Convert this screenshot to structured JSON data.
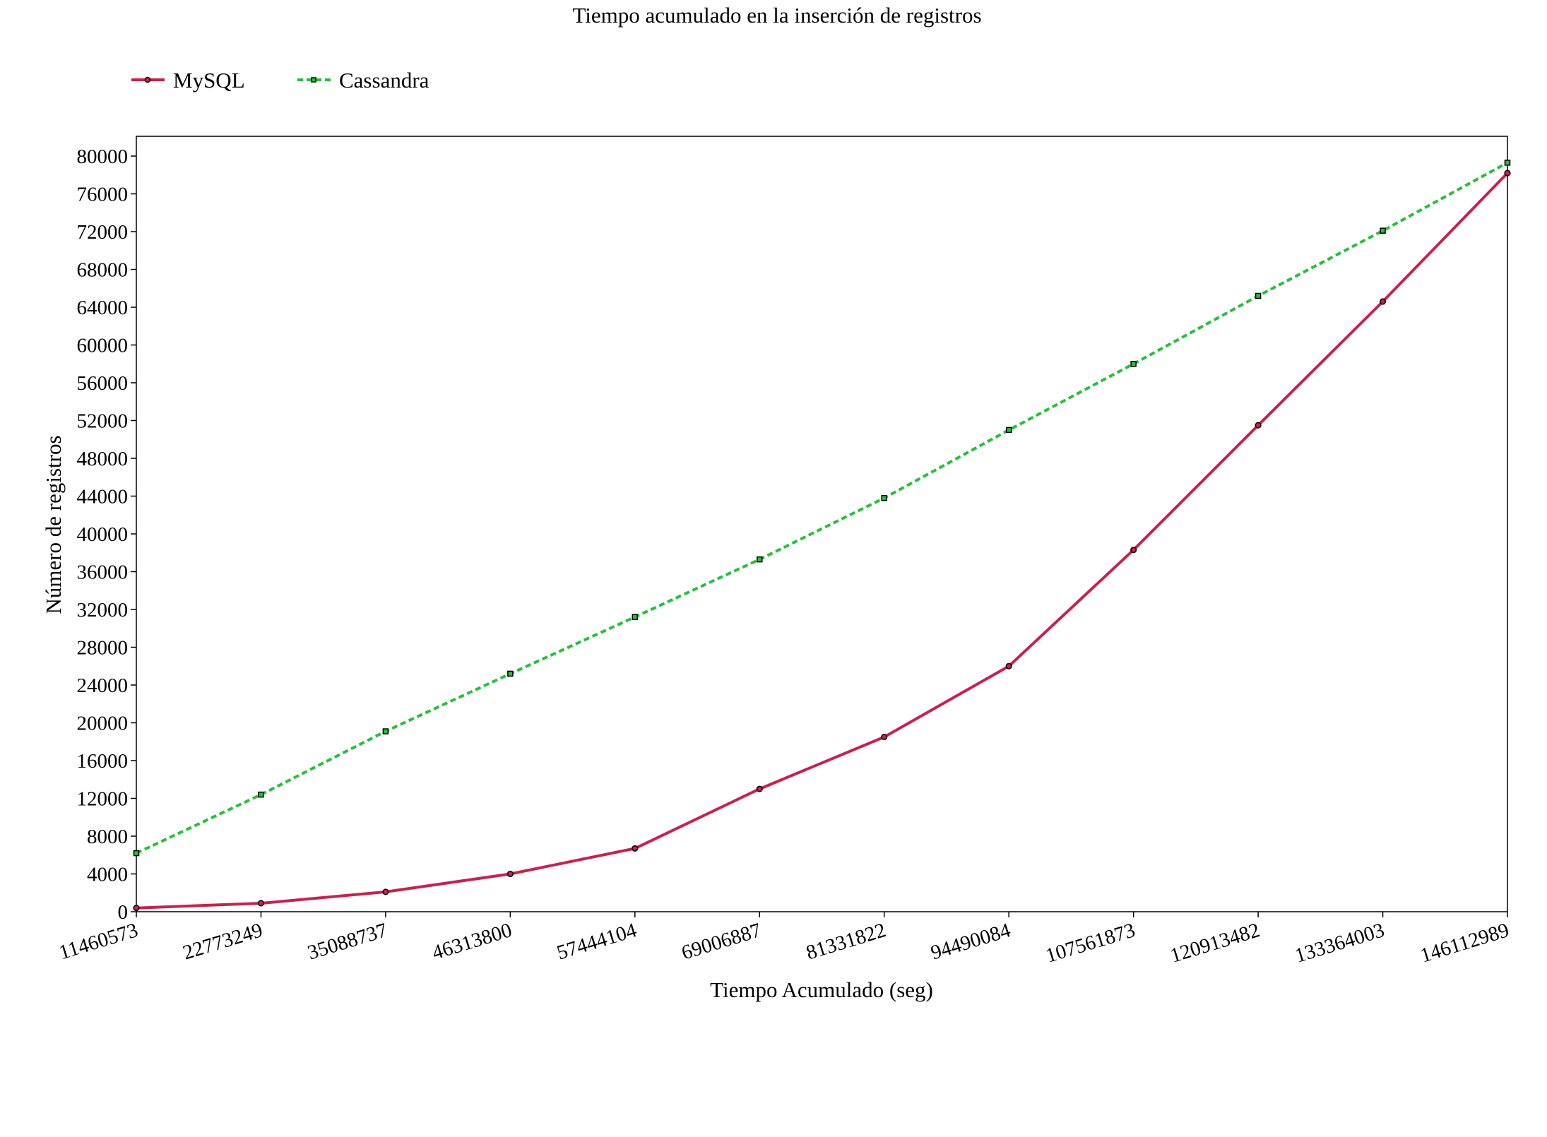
{
  "chart_data": {
    "type": "line",
    "title": "Tiempo acumulado en la inserción de registros",
    "xlabel": "Tiempo Acumulado (seg)",
    "ylabel": "Número de registros",
    "categories": [
      "11460573",
      "22773249",
      "35088737",
      "46313800",
      "57444104",
      "69006887",
      "81331822",
      "94490084",
      "107561873",
      "120913482",
      "133364003",
      "146112989"
    ],
    "ylim": [
      0,
      80000
    ],
    "yticks": [
      "0",
      "4000",
      "8000",
      "12000",
      "16000",
      "20000",
      "24000",
      "28000",
      "32000",
      "36000",
      "40000",
      "44000",
      "48000",
      "52000",
      "56000",
      "60000",
      "64000",
      "68000",
      "72000",
      "76000",
      "80000"
    ],
    "grid": false,
    "legend_position": "top-left",
    "series": [
      {
        "name": "MySQL",
        "color": "#cc1f4c",
        "style": "solid",
        "values": [
          400,
          900,
          2100,
          4000,
          6700,
          13000,
          18500,
          26000,
          38300,
          51500,
          64600,
          78200
        ]
      },
      {
        "name": "Cassandra",
        "color": "#22c23a",
        "style": "dashed",
        "values": [
          6200,
          12400,
          19100,
          25200,
          31200,
          37300,
          43800,
          51000,
          58000,
          65200,
          72100,
          79300
        ]
      }
    ]
  }
}
